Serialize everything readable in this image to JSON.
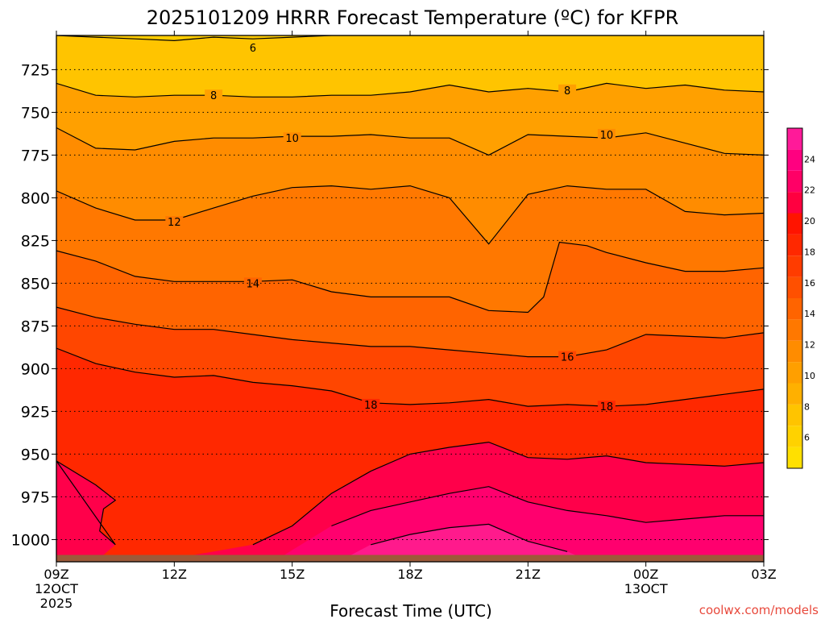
{
  "chart_data": {
    "type": "contour",
    "title": "2025101209 HRRR Forecast Temperature (ºC) for KFPR",
    "xlabel": "Forecast Time (UTC)",
    "ylabel": "",
    "credit": "coolwx.com/models",
    "x_hours": [
      0,
      3,
      6,
      9,
      12,
      15,
      18
    ],
    "x_ticks": [
      {
        "label": "09Z",
        "sub1": "12OCT",
        "sub2": "2025"
      },
      {
        "label": "12Z",
        "sub1": "",
        "sub2": ""
      },
      {
        "label": "15Z",
        "sub1": "",
        "sub2": ""
      },
      {
        "label": "18Z",
        "sub1": "",
        "sub2": ""
      },
      {
        "label": "21Z",
        "sub1": "",
        "sub2": ""
      },
      {
        "label": "00Z",
        "sub1": "13OCT",
        "sub2": ""
      },
      {
        "label": "03Z",
        "sub1": "",
        "sub2": ""
      }
    ],
    "xlim": [
      0,
      18
    ],
    "ylim": [
      1013,
      705
    ],
    "y_ticks": [
      {
        "value": 725,
        "label": "725"
      },
      {
        "value": 750,
        "label": "750"
      },
      {
        "value": 775,
        "label": "775"
      },
      {
        "value": 800,
        "label": "800"
      },
      {
        "value": 825,
        "label": "825"
      },
      {
        "value": 850,
        "label": "850"
      },
      {
        "value": 875,
        "label": "875"
      },
      {
        "value": 900,
        "label": "900"
      },
      {
        "value": 925,
        "label": "925"
      },
      {
        "value": 950,
        "label": "950"
      },
      {
        "value": 975,
        "label": "975"
      },
      {
        "value": 1000,
        "label": "1000"
      }
    ],
    "ground_top_pressure": 1009,
    "colorbar": {
      "min": 4,
      "max": 26,
      "step": 2,
      "colors": [
        "#ffe000",
        "#ffd200",
        "#ffc400",
        "#ffb000",
        "#ff9f00",
        "#ff8c00",
        "#ff7800",
        "#ff6400",
        "#ff5000",
        "#ff3c00",
        "#ff2800",
        "#ff1400",
        "#ff0040",
        "#ff0066",
        "#ff0080",
        "#ff1a99"
      ],
      "tick_labels": [
        {
          "value": 6,
          "label": "6"
        },
        {
          "value": 8,
          "label": "8"
        },
        {
          "value": 10,
          "label": "10"
        },
        {
          "value": 12,
          "label": "12"
        },
        {
          "value": 14,
          "label": "14"
        },
        {
          "value": 16,
          "label": "16"
        },
        {
          "value": 18,
          "label": "18"
        },
        {
          "value": 20,
          "label": "20"
        },
        {
          "value": 22,
          "label": "22"
        },
        {
          "value": 24,
          "label": "24"
        }
      ]
    },
    "contours": [
      {
        "value": 6,
        "label": "6",
        "fill": "#ffc400",
        "points": [
          [
            0,
            705
          ],
          [
            1,
            706
          ],
          [
            2,
            707
          ],
          [
            3,
            708
          ],
          [
            4,
            706
          ],
          [
            5,
            707
          ],
          [
            6,
            706
          ],
          [
            7,
            705
          ],
          [
            18,
            705
          ]
        ],
        "labels": [
          {
            "t": 5.0,
            "p": 712,
            "text": "6"
          }
        ]
      },
      {
        "value": 8,
        "label": "8",
        "fill": "#ffa000",
        "points": [
          [
            0,
            733
          ],
          [
            1,
            740
          ],
          [
            2,
            741
          ],
          [
            3,
            740
          ],
          [
            4,
            740
          ],
          [
            5,
            741
          ],
          [
            6,
            741
          ],
          [
            7,
            740
          ],
          [
            8,
            740
          ],
          [
            9,
            738
          ],
          [
            10,
            734
          ],
          [
            11,
            738
          ],
          [
            12,
            736
          ],
          [
            13,
            738
          ],
          [
            14,
            733
          ],
          [
            15,
            736
          ],
          [
            16,
            734
          ],
          [
            17,
            737
          ],
          [
            18,
            738
          ]
        ],
        "labels": [
          {
            "t": 4.0,
            "p": 740,
            "text": "8"
          },
          {
            "t": 13.0,
            "p": 737,
            "text": "8"
          }
        ]
      },
      {
        "value": 10,
        "label": "10",
        "fill": "#ff8c00",
        "points": [
          [
            0,
            759
          ],
          [
            1,
            771
          ],
          [
            2,
            772
          ],
          [
            3,
            767
          ],
          [
            4,
            765
          ],
          [
            5,
            765
          ],
          [
            6,
            764
          ],
          [
            7,
            764
          ],
          [
            8,
            763
          ],
          [
            9,
            765
          ],
          [
            10,
            765
          ],
          [
            11,
            775
          ],
          [
            12,
            763
          ],
          [
            13,
            764
          ],
          [
            14,
            765
          ],
          [
            15,
            762
          ],
          [
            16,
            768
          ],
          [
            17,
            774
          ],
          [
            18,
            775
          ]
        ],
        "labels": [
          {
            "t": 6.0,
            "p": 765,
            "text": "10"
          },
          {
            "t": 14.0,
            "p": 763,
            "text": "10"
          }
        ]
      },
      {
        "value": 12,
        "label": "12",
        "fill": "#ff7800",
        "points": [
          [
            0,
            796
          ],
          [
            1,
            806
          ],
          [
            2,
            813
          ],
          [
            3,
            813
          ],
          [
            4,
            806
          ],
          [
            5,
            799
          ],
          [
            6,
            794
          ],
          [
            7,
            793
          ],
          [
            8,
            795
          ],
          [
            9,
            793
          ],
          [
            10,
            800
          ],
          [
            11,
            827
          ],
          [
            12,
            798
          ],
          [
            13,
            793
          ],
          [
            14,
            795
          ],
          [
            15,
            795
          ],
          [
            16,
            808
          ],
          [
            17,
            810
          ],
          [
            18,
            809
          ]
        ],
        "labels": [
          {
            "t": 3.0,
            "p": 814,
            "text": "12"
          }
        ]
      },
      {
        "value": 14,
        "label": "14",
        "fill": "#ff6400",
        "points": [
          [
            0,
            831
          ],
          [
            1,
            837
          ],
          [
            2,
            846
          ],
          [
            3,
            849
          ],
          [
            4,
            849
          ],
          [
            5,
            849
          ],
          [
            6,
            848
          ],
          [
            7,
            855
          ],
          [
            8,
            858
          ],
          [
            9,
            858
          ],
          [
            10,
            858
          ],
          [
            11,
            866
          ],
          [
            12,
            867
          ],
          [
            12.4,
            858
          ],
          [
            12.8,
            826
          ],
          [
            13.5,
            828
          ],
          [
            14,
            832
          ],
          [
            15,
            838
          ],
          [
            16,
            843
          ],
          [
            17,
            843
          ],
          [
            18,
            841
          ]
        ],
        "labels": [
          {
            "t": 5.0,
            "p": 850,
            "text": "14"
          }
        ]
      },
      {
        "value": 16,
        "label": "16",
        "fill": "#ff4600",
        "points": [
          [
            0,
            864
          ],
          [
            1,
            870
          ],
          [
            2,
            874
          ],
          [
            3,
            877
          ],
          [
            4,
            877
          ],
          [
            5,
            880
          ],
          [
            6,
            883
          ],
          [
            7,
            885
          ],
          [
            8,
            887
          ],
          [
            9,
            887
          ],
          [
            10,
            889
          ],
          [
            11,
            891
          ],
          [
            12,
            893
          ],
          [
            13,
            893
          ],
          [
            14,
            889
          ],
          [
            15,
            880
          ],
          [
            16,
            881
          ],
          [
            17,
            882
          ],
          [
            18,
            879
          ]
        ],
        "labels": [
          {
            "t": 13.0,
            "p": 893,
            "text": "16"
          }
        ]
      },
      {
        "value": 18,
        "label": "18",
        "fill": "#ff2800",
        "points": [
          [
            0,
            888
          ],
          [
            1,
            897
          ],
          [
            2,
            902
          ],
          [
            3,
            905
          ],
          [
            4,
            904
          ],
          [
            5,
            908
          ],
          [
            6,
            910
          ],
          [
            7,
            913
          ],
          [
            8,
            920
          ],
          [
            9,
            921
          ],
          [
            10,
            920
          ],
          [
            11,
            918
          ],
          [
            12,
            922
          ],
          [
            13,
            921
          ],
          [
            14,
            922
          ],
          [
            15,
            921
          ],
          [
            16,
            918
          ],
          [
            17,
            915
          ],
          [
            18,
            912
          ]
        ],
        "labels": [
          {
            "t": 8.0,
            "p": 921,
            "text": "18"
          },
          {
            "t": 14.0,
            "p": 922,
            "text": "18"
          }
        ]
      },
      {
        "value": 20,
        "label": "20",
        "fill": "#ff004a",
        "points": [
          [
            0,
            954
          ],
          [
            1,
            968
          ],
          [
            1.5,
            977
          ],
          [
            1.2,
            982
          ],
          [
            1.1,
            995
          ],
          [
            1.5,
            1003
          ],
          [
            1.2,
            1009
          ],
          [
            0,
            1009
          ],
          [
            0,
            954
          ]
        ],
        "closed": true,
        "labels": []
      },
      {
        "value": 20,
        "label": "20",
        "fill": "#ff004a",
        "points": [
          [
            3.5,
            1009
          ],
          [
            5,
            1003
          ],
          [
            6,
            992
          ],
          [
            7,
            973
          ],
          [
            8,
            960
          ],
          [
            9,
            950
          ],
          [
            10,
            946
          ],
          [
            11,
            943
          ],
          [
            12,
            952
          ],
          [
            13,
            953
          ],
          [
            14,
            951
          ],
          [
            15,
            955
          ],
          [
            16,
            956
          ],
          [
            17,
            957
          ],
          [
            18,
            955
          ],
          [
            18,
            1009
          ],
          [
            3.5,
            1009
          ]
        ],
        "closed": true,
        "labels": []
      },
      {
        "value": 22,
        "label": "22",
        "fill": "#ff006e",
        "points": [
          [
            5.8,
            1009
          ],
          [
            7,
            992
          ],
          [
            8,
            983
          ],
          [
            9,
            978
          ],
          [
            10,
            973
          ],
          [
            11,
            969
          ],
          [
            12,
            978
          ],
          [
            13,
            983
          ],
          [
            14,
            986
          ],
          [
            15,
            990
          ],
          [
            16,
            988
          ],
          [
            17,
            986
          ],
          [
            18,
            986
          ],
          [
            18,
            1009
          ],
          [
            5.8,
            1009
          ]
        ],
        "closed": true,
        "labels": []
      },
      {
        "value": 24,
        "label": "24",
        "fill": "#ff1a8c",
        "points": [
          [
            7.5,
            1009
          ],
          [
            8,
            1003
          ],
          [
            9,
            997
          ],
          [
            10,
            993
          ],
          [
            11,
            991
          ],
          [
            12,
            1001
          ],
          [
            13,
            1007
          ],
          [
            13.2,
            1009
          ],
          [
            7.5,
            1009
          ]
        ],
        "closed": true,
        "labels": []
      }
    ]
  }
}
